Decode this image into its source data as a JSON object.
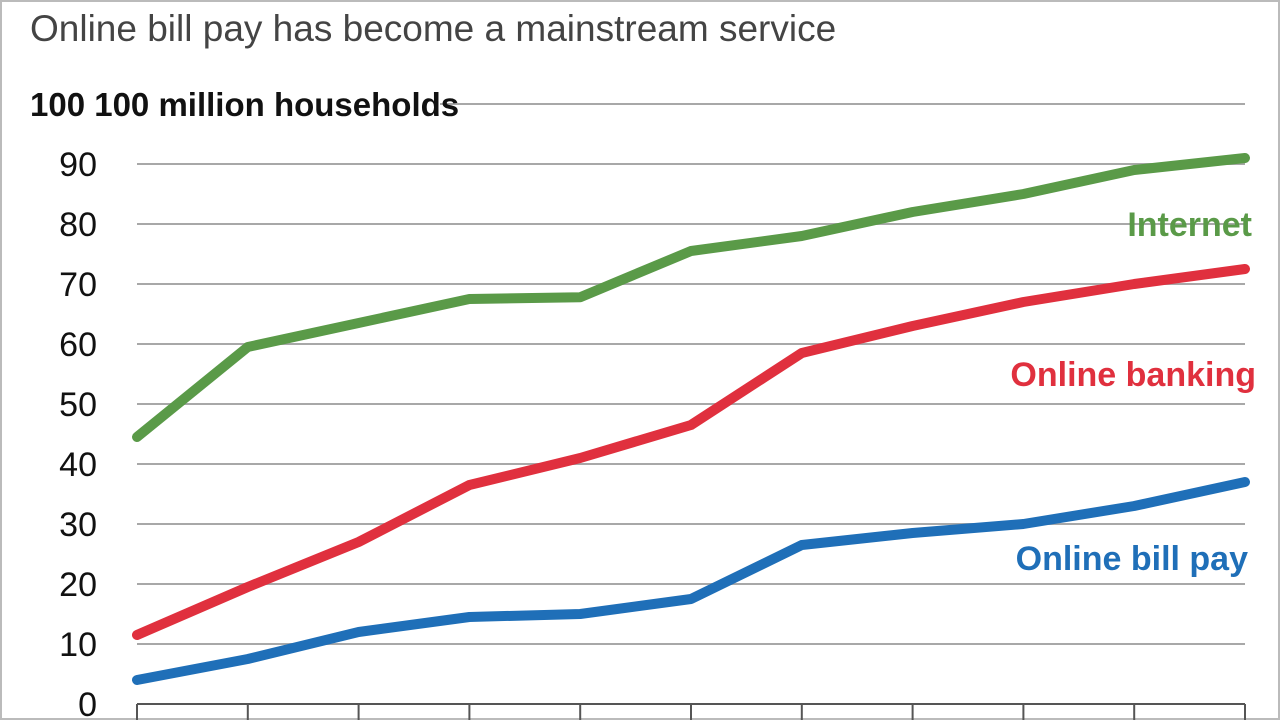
{
  "title": "Online bill pay has become a mainstream service",
  "chart_data": {
    "type": "line",
    "ylabel": "100 million households",
    "ylim": [
      0,
      100
    ],
    "yticks": [
      0,
      10,
      20,
      30,
      40,
      50,
      60,
      70,
      80,
      90,
      100
    ],
    "ytick_labels": [
      "0",
      "10",
      "20",
      "30",
      "40",
      "50",
      "60",
      "70",
      "80",
      "90",
      "100"
    ],
    "x": [
      0,
      1,
      2,
      3,
      4,
      5,
      6,
      7,
      8,
      9,
      10
    ],
    "grid": true,
    "series": [
      {
        "name": "Internet",
        "color": "#5a9a48",
        "values": [
          44.5,
          59.5,
          63.5,
          67.5,
          67.8,
          75.5,
          78,
          82,
          85,
          89,
          91
        ]
      },
      {
        "name": "Online banking",
        "color": "#e0303e",
        "values": [
          11.5,
          19.5,
          27,
          36.5,
          41,
          46.5,
          58.5,
          63,
          67,
          70,
          72.5
        ]
      },
      {
        "name": "Online bill pay",
        "color": "#1f6fb8",
        "values": [
          4,
          7.5,
          12,
          14.5,
          15,
          17.5,
          26.5,
          28.5,
          30,
          33,
          37
        ]
      }
    ]
  }
}
